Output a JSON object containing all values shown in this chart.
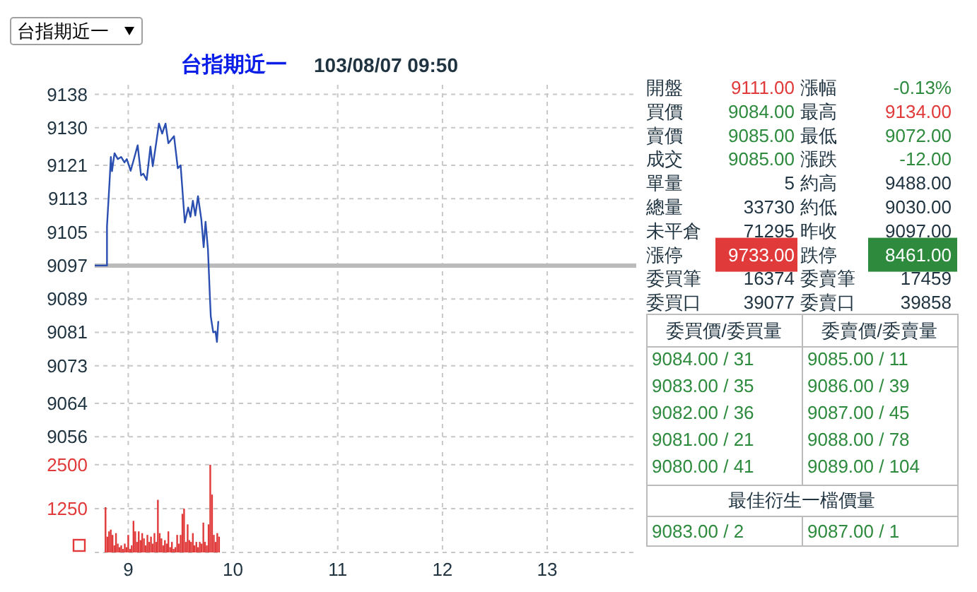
{
  "chart_data": [
    {
      "type": "line",
      "title": "台指期近一",
      "subtitle": "103/08/07 09:50",
      "x": [
        8.68,
        8.797,
        8.797,
        8.82,
        8.834,
        8.845,
        8.869,
        8.9,
        8.932,
        8.964,
        8.986,
        9.023,
        9.054,
        9.09,
        9.122,
        9.144,
        9.176,
        9.212,
        9.234,
        9.27,
        9.293,
        9.324,
        9.356,
        9.383,
        9.437,
        9.473,
        9.5,
        9.54,
        9.572,
        9.594,
        9.617,
        9.64,
        9.666,
        9.698,
        9.72,
        9.738,
        9.761,
        9.779,
        9.788,
        9.811,
        9.833,
        9.847,
        9.86
      ],
      "series": [
        {
          "color": "#2a4fb0",
          "values": [
            9097,
            9097,
            9106.4,
            9116.4,
            9123,
            9119.6,
            9123.9,
            9122.5,
            9123,
            9121.7,
            9122.5,
            9119.7,
            9122.5,
            9125.8,
            9118.6,
            9119,
            9117.5,
            9125.5,
            9120.8,
            9126.9,
            9131,
            9128.6,
            9131,
            9126.3,
            9128,
            9120.3,
            9121,
            9107.3,
            9110.9,
            9108.7,
            9112.5,
            9109,
            9113.6,
            9108,
            9101.4,
            9107.5,
            9100.9,
            9089.8,
            9084.8,
            9081,
            9081.2,
            9078.7,
            9083.7
          ]
        }
      ],
      "xlim": [
        8.68,
        13.85
      ],
      "xticks": [
        9,
        10,
        11,
        12,
        13
      ],
      "ylim": [
        9054,
        9140.3
      ],
      "yticks": [
        9138,
        9130,
        9121,
        9113,
        9105,
        9097,
        9089,
        9081,
        9073,
        9064,
        9056
      ],
      "grid": true,
      "tick_labels": "y",
      "ref_lines": [
        {
          "axis": "y",
          "value": 9097,
          "color": "#bbbbbb"
        }
      ]
    },
    {
      "type": "bar",
      "x": [
        8.783,
        8.8,
        8.817,
        8.833,
        8.85,
        8.867,
        8.883,
        8.9,
        8.917,
        8.933,
        8.95,
        8.967,
        8.983,
        9,
        9.017,
        9.033,
        9.05,
        9.067,
        9.083,
        9.1,
        9.117,
        9.133,
        9.15,
        9.167,
        9.183,
        9.2,
        9.217,
        9.233,
        9.25,
        9.267,
        9.283,
        9.3,
        9.317,
        9.333,
        9.35,
        9.367,
        9.383,
        9.4,
        9.417,
        9.433,
        9.45,
        9.467,
        9.483,
        9.5,
        9.517,
        9.533,
        9.55,
        9.567,
        9.583,
        9.6,
        9.617,
        9.633,
        9.65,
        9.667,
        9.683,
        9.7,
        9.717,
        9.733,
        9.75,
        9.767,
        9.783,
        9.8,
        9.817,
        9.833,
        9.85,
        9.867
      ],
      "values": [
        1290,
        450,
        600,
        650,
        500,
        200,
        550,
        250,
        150,
        200,
        100,
        250,
        150,
        500,
        100,
        200,
        900,
        600,
        300,
        600,
        350,
        550,
        400,
        200,
        500,
        300,
        450,
        250,
        550,
        300,
        1500,
        550,
        400,
        200,
        350,
        250,
        600,
        150,
        300,
        100,
        150,
        500,
        250,
        500,
        1100,
        1250,
        300,
        800,
        350,
        300,
        550,
        200,
        300,
        150,
        300,
        250,
        850,
        300,
        200,
        800,
        2500,
        1650,
        500,
        300,
        550,
        450
      ],
      "color": "#e03a3a",
      "xlim": [
        8.68,
        13.85
      ],
      "xticks": [
        9,
        10,
        11,
        12,
        13
      ],
      "ylim": [
        0,
        2860
      ],
      "yticks": [
        {
          "value": 0,
          "label": null
        },
        1250,
        2500
      ],
      "grid": true
    },
    {
      "type": "other",
      "annotations": [
        "台指期近一",
        "開盤",
        "9111.00",
        "漲幅",
        "-0.13%",
        "買價",
        "9084.00",
        "最高",
        "9134.00",
        "賣價",
        "9085.00",
        "最低",
        "9072.00",
        "成交",
        "9085.00",
        "漲跌",
        "-12.00",
        "單量",
        "5",
        "約高",
        "9488.00",
        "總量",
        "33730",
        "約低",
        "9030.00",
        "未平倉",
        "71295",
        "昨收",
        "9097.00",
        "漲停",
        "9733.00",
        "跌停",
        "8461.00",
        "委買筆",
        "16374",
        "委賣筆",
        "17459",
        "委買口",
        "39077",
        "委賣口",
        "39858",
        "委買價/委買量",
        "委賣價/委賣量",
        "9084.00 / 31",
        "9085.00 / 11",
        "9083.00 / 35",
        "9086.00 / 39",
        "9082.00 / 36",
        "9087.00 / 45",
        "9081.00 / 21",
        "9088.00 / 78",
        "9080.00 / 41",
        "9089.00 / 104",
        "最佳衍生一檔價量",
        "9083.00 / 2",
        "9087.00 / 1"
      ]
    }
  ]
}
